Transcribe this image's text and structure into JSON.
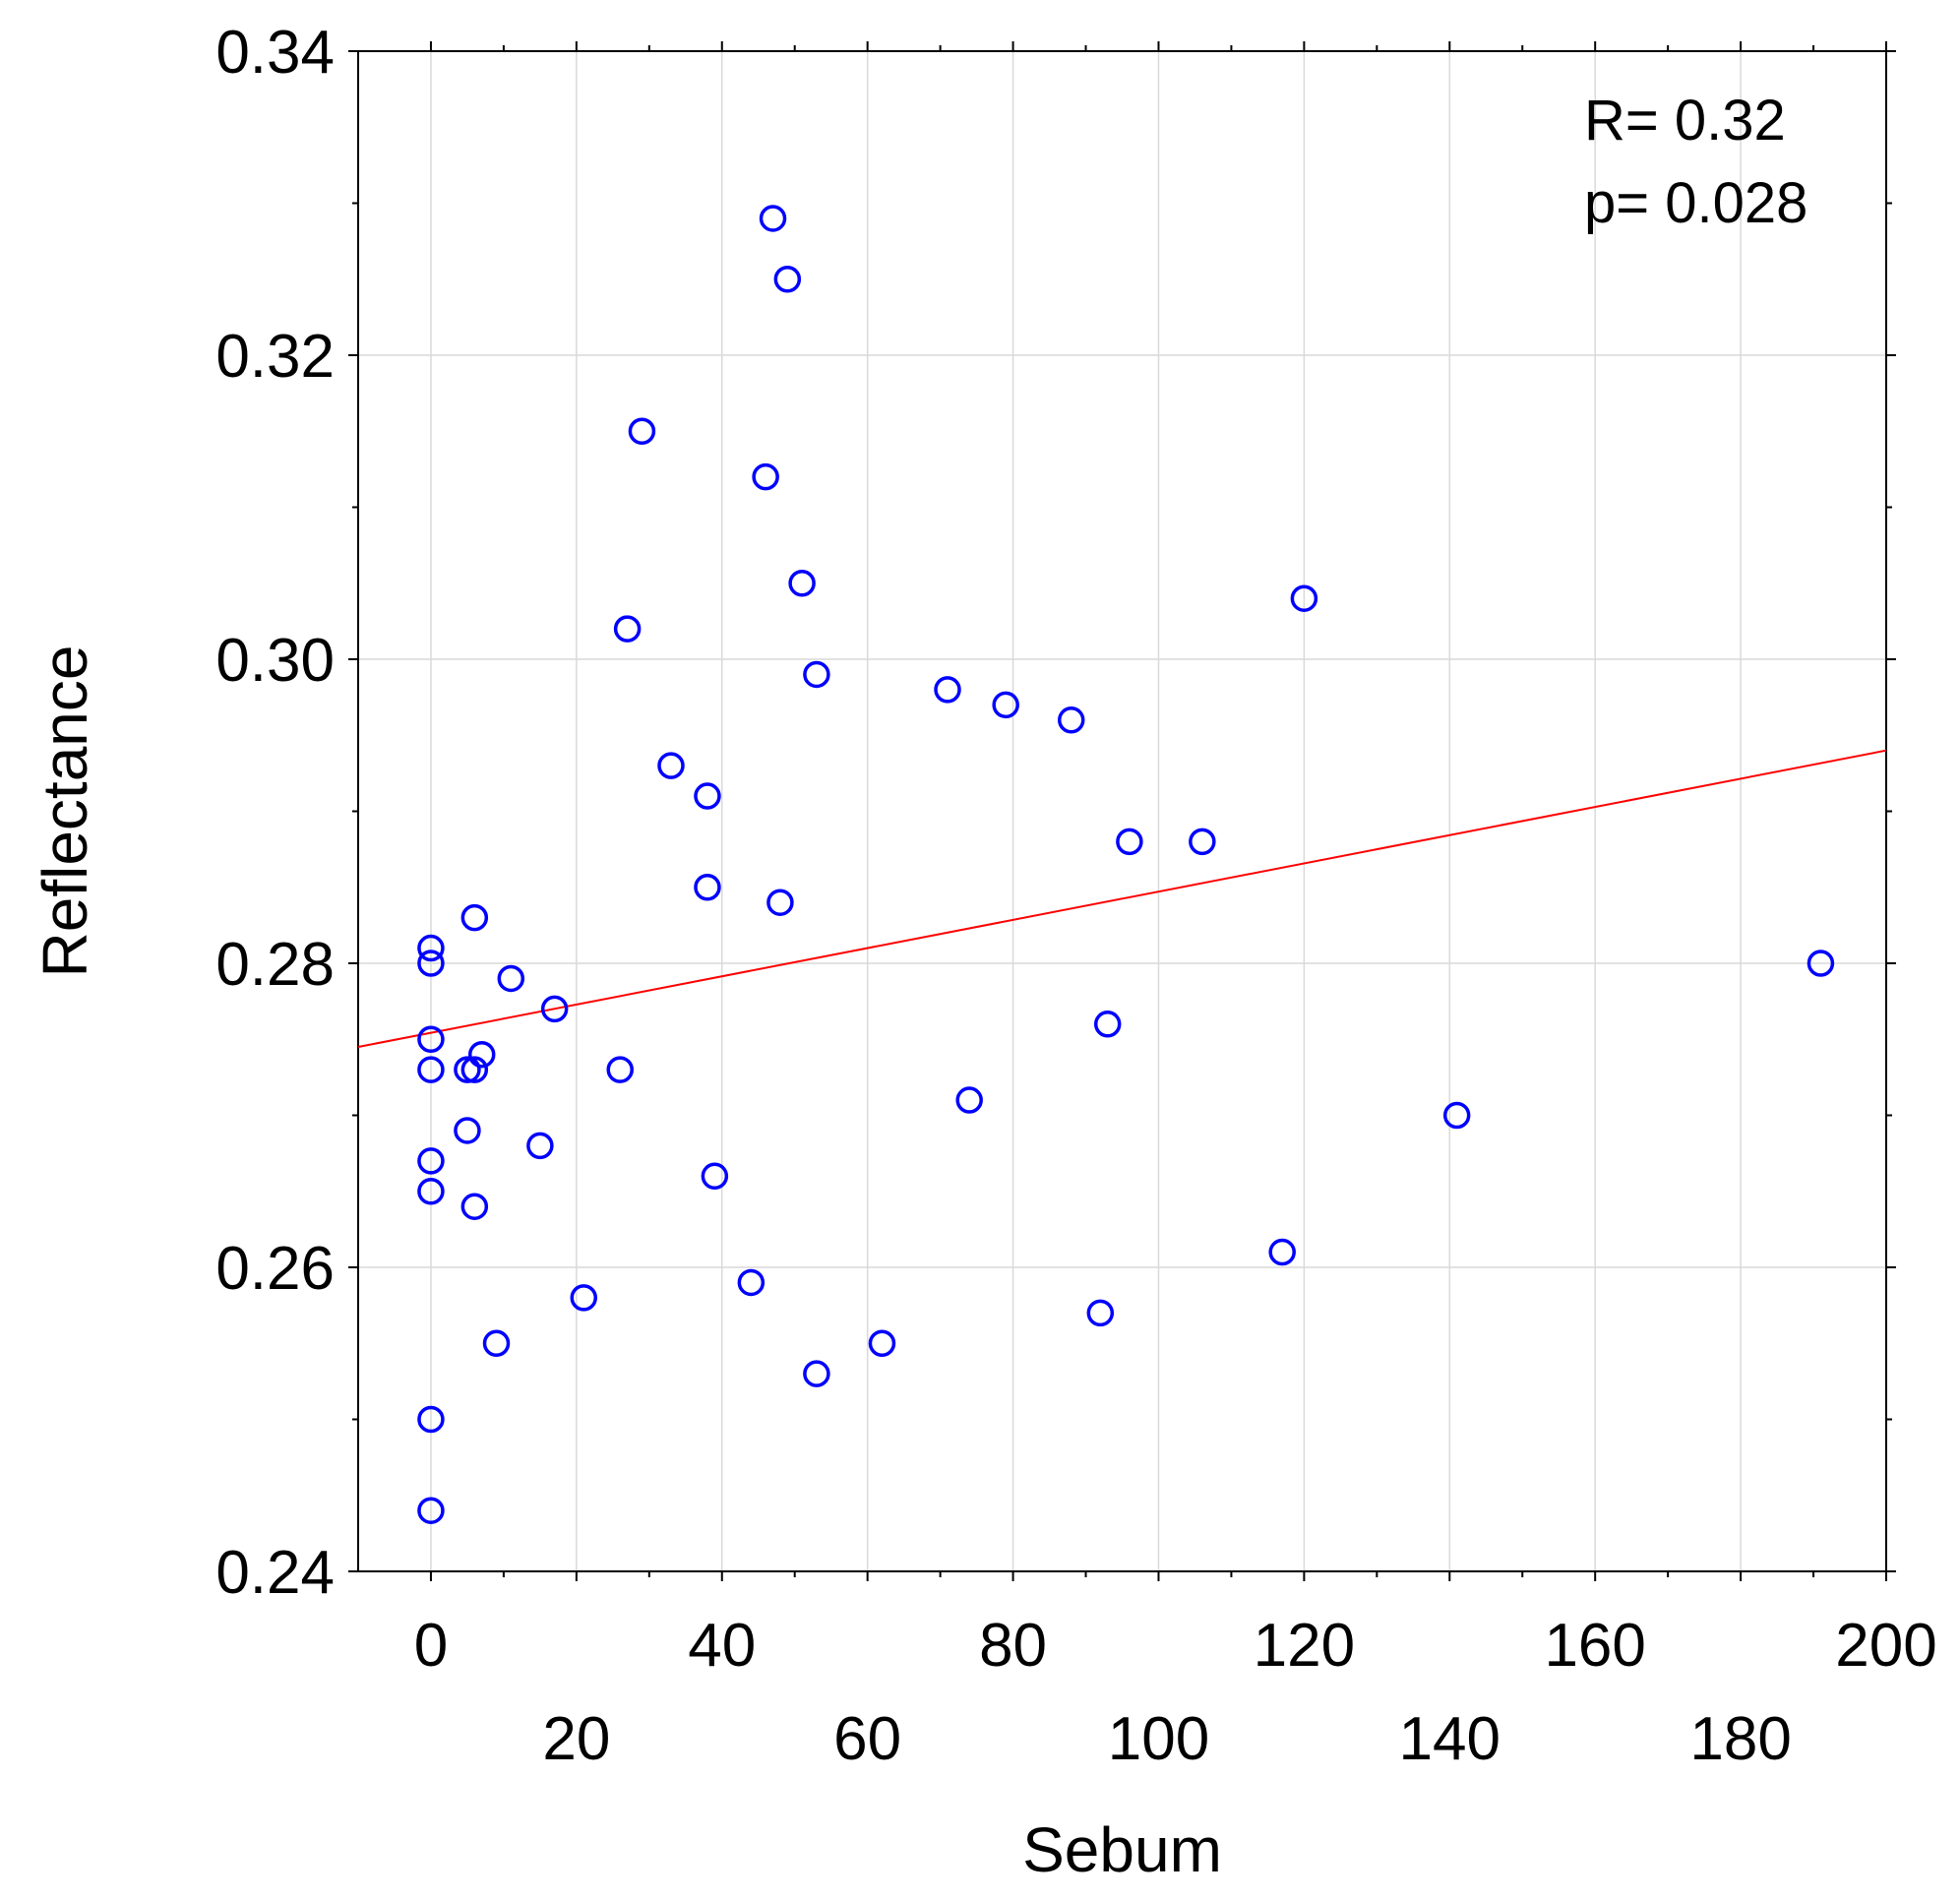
{
  "chart_data": {
    "type": "scatter",
    "title": "",
    "xlabel": "Sebum",
    "ylabel": "Reflectance",
    "xlim": [
      -10,
      200
    ],
    "ylim": [
      0.24,
      0.34
    ],
    "xticks": [
      0,
      20,
      40,
      60,
      80,
      100,
      120,
      140,
      160,
      180,
      200
    ],
    "xtick_labels": [
      "0",
      "20",
      "40",
      "60",
      "80",
      "100",
      "120",
      "140",
      "160",
      "180",
      "200"
    ],
    "xminor": [
      10,
      30,
      50,
      70,
      90,
      110,
      130,
      150,
      170,
      190
    ],
    "yticks": [
      0.24,
      0.26,
      0.28,
      0.3,
      0.32,
      0.34
    ],
    "ytick_labels": [
      "0.24",
      "0.26",
      "0.28",
      "0.30",
      "0.32",
      "0.34"
    ],
    "yminor": [
      0.25,
      0.27,
      0.29,
      0.31,
      0.33
    ],
    "grid": true,
    "point_color": "#0000ff",
    "fit_color": "#ff0000",
    "fit_line": {
      "x": [
        -10,
        200
      ],
      "y": [
        0.2745,
        0.294
      ]
    },
    "annotations": {
      "r_text": "R= 0.32",
      "p_text": "p= 0.028"
    },
    "points": [
      {
        "x": 0,
        "y": 0.281
      },
      {
        "x": 0,
        "y": 0.28
      },
      {
        "x": 0,
        "y": 0.275
      },
      {
        "x": 0,
        "y": 0.273
      },
      {
        "x": 0,
        "y": 0.267
      },
      {
        "x": 0,
        "y": 0.265
      },
      {
        "x": 0,
        "y": 0.25
      },
      {
        "x": 0,
        "y": 0.244
      },
      {
        "x": 6,
        "y": 0.283
      },
      {
        "x": 11,
        "y": 0.279
      },
      {
        "x": 17,
        "y": 0.277
      },
      {
        "x": 7,
        "y": 0.274
      },
      {
        "x": 5,
        "y": 0.273
      },
      {
        "x": 6,
        "y": 0.273
      },
      {
        "x": 5,
        "y": 0.269
      },
      {
        "x": 15,
        "y": 0.268
      },
      {
        "x": 6,
        "y": 0.264
      },
      {
        "x": 9,
        "y": 0.255
      },
      {
        "x": 21,
        "y": 0.258
      },
      {
        "x": 26,
        "y": 0.273
      },
      {
        "x": 27,
        "y": 0.302
      },
      {
        "x": 29,
        "y": 0.315
      },
      {
        "x": 33,
        "y": 0.293
      },
      {
        "x": 38,
        "y": 0.291
      },
      {
        "x": 38,
        "y": 0.285
      },
      {
        "x": 39,
        "y": 0.266
      },
      {
        "x": 44,
        "y": 0.259
      },
      {
        "x": 46,
        "y": 0.312
      },
      {
        "x": 47,
        "y": 0.329
      },
      {
        "x": 49,
        "y": 0.325
      },
      {
        "x": 51,
        "y": 0.305
      },
      {
        "x": 53,
        "y": 0.299
      },
      {
        "x": 48,
        "y": 0.284
      },
      {
        "x": 53,
        "y": 0.253
      },
      {
        "x": 62,
        "y": 0.255
      },
      {
        "x": 71,
        "y": 0.298
      },
      {
        "x": 74,
        "y": 0.271
      },
      {
        "x": 79,
        "y": 0.297
      },
      {
        "x": 88,
        "y": 0.296
      },
      {
        "x": 93,
        "y": 0.276
      },
      {
        "x": 92,
        "y": 0.257
      },
      {
        "x": 96,
        "y": 0.288
      },
      {
        "x": 106,
        "y": 0.288
      },
      {
        "x": 117,
        "y": 0.261
      },
      {
        "x": 120,
        "y": 0.304
      },
      {
        "x": 141,
        "y": 0.27
      },
      {
        "x": 191,
        "y": 0.28
      }
    ]
  }
}
